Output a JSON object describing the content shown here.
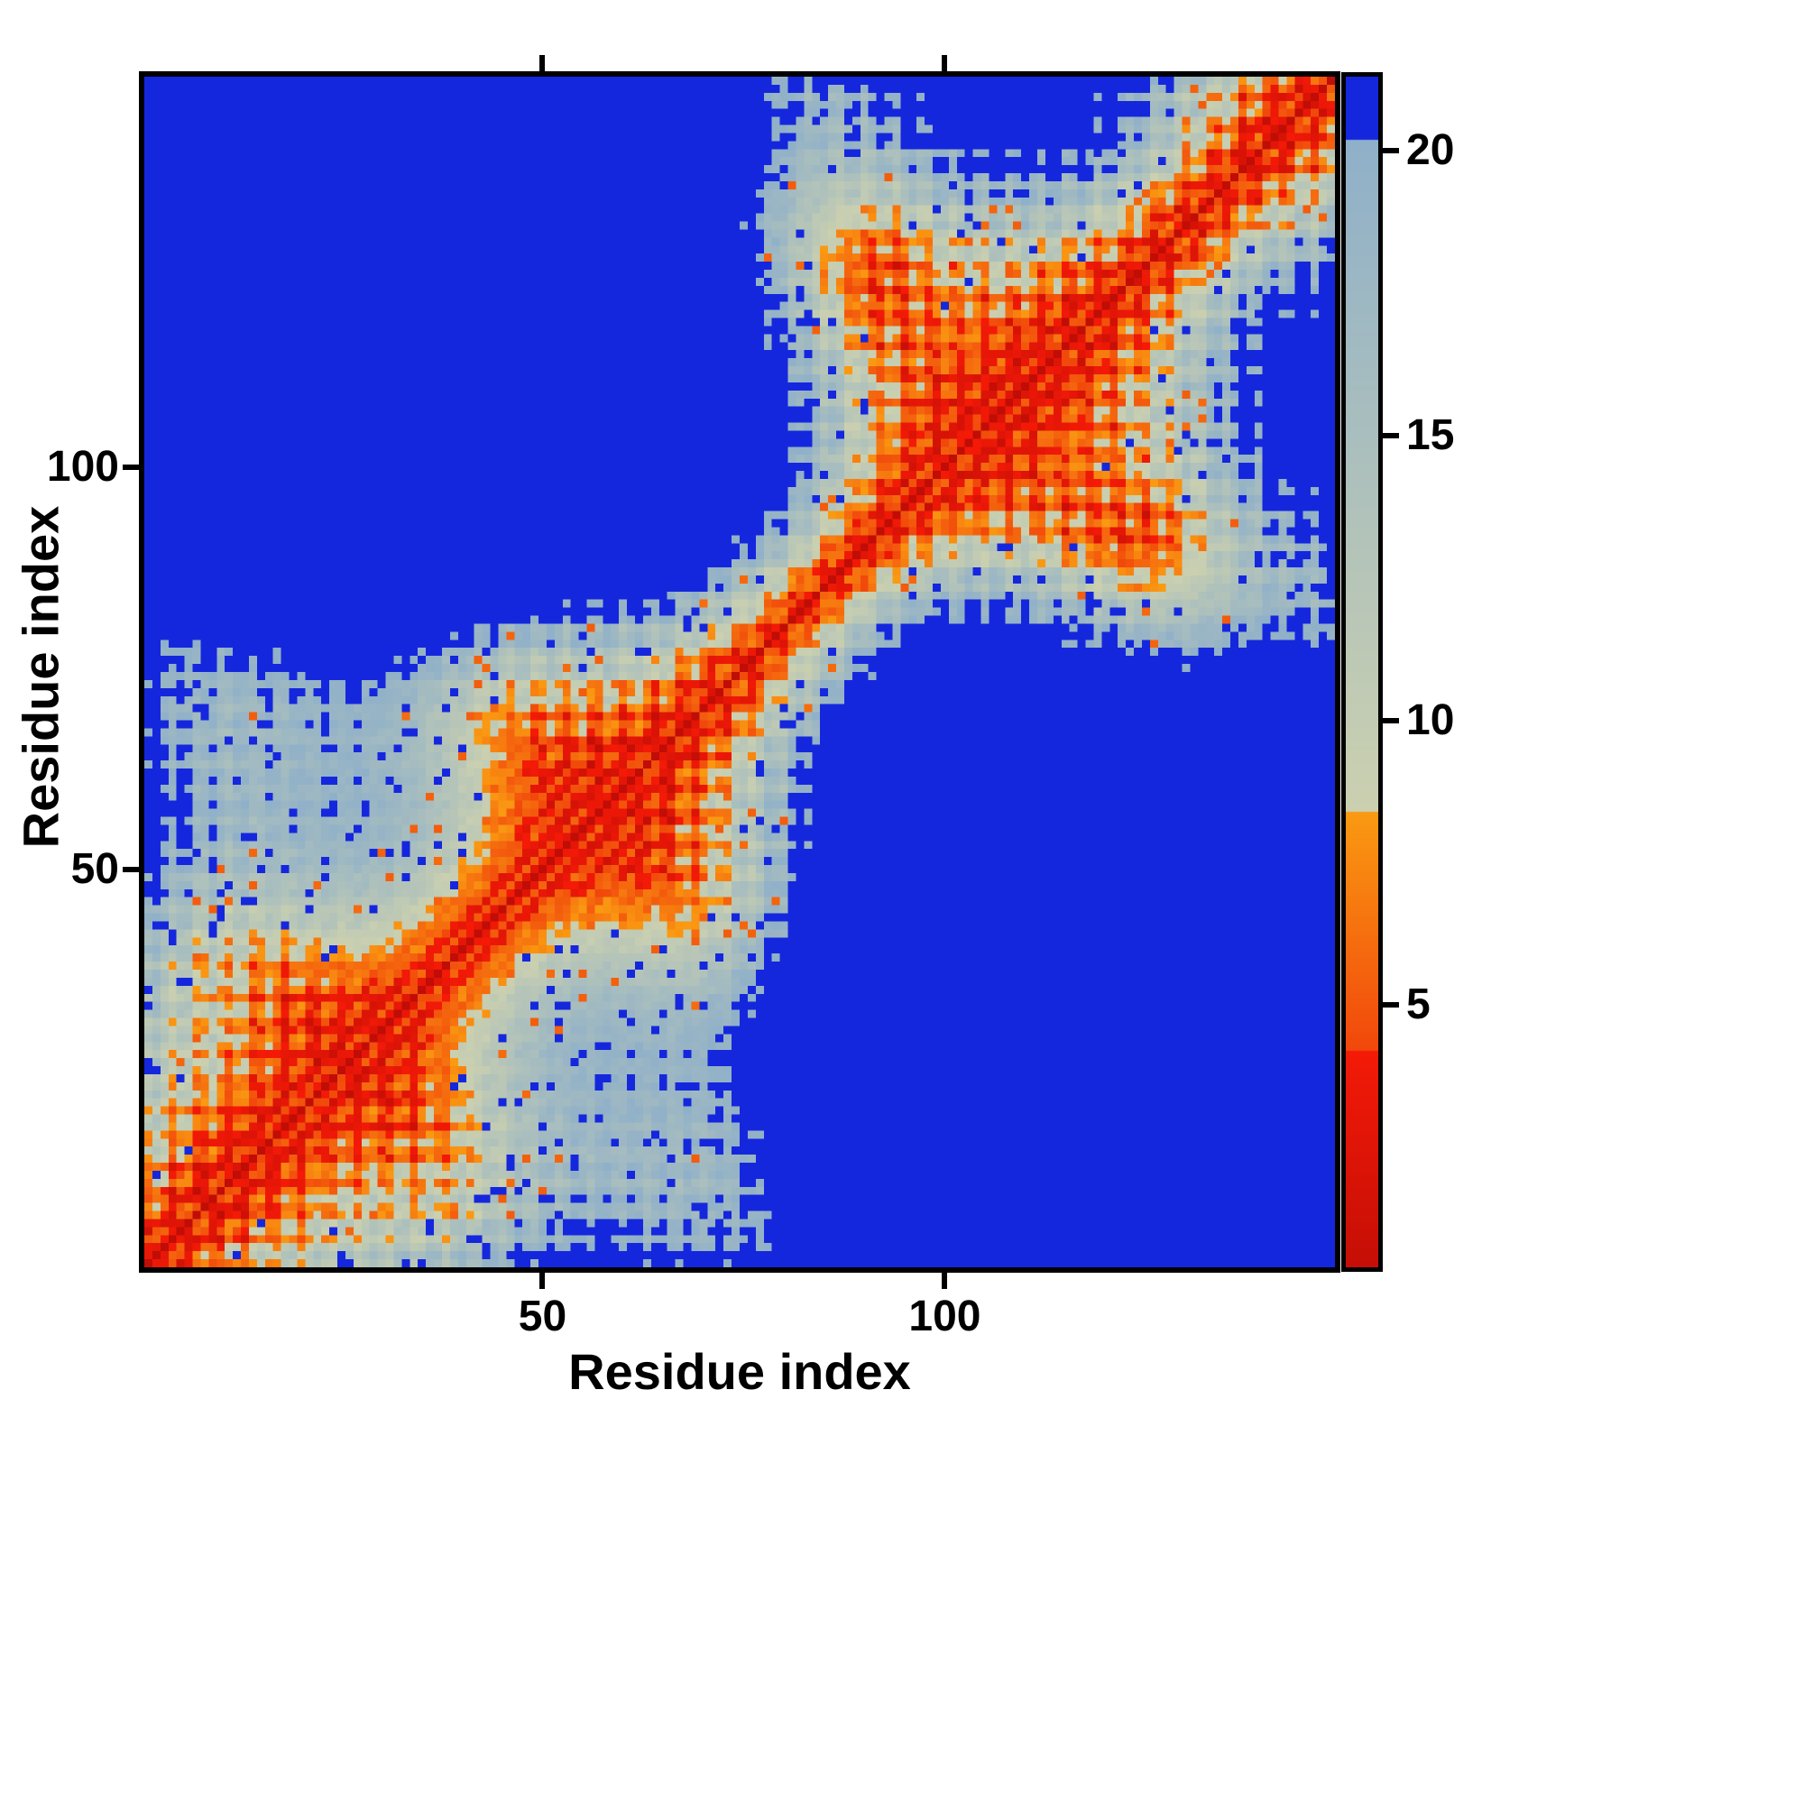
{
  "figure": {
    "background": "#ffffff"
  },
  "chart_data": {
    "type": "heatmap",
    "title": "",
    "xlabel": "Residue index",
    "ylabel": "Residue index",
    "x_ticks": [
      50,
      100
    ],
    "y_ticks": [
      50,
      100
    ],
    "n_residues": 148,
    "axis_range": [
      1,
      148
    ],
    "grid": false,
    "legend": "none",
    "colorbar": {
      "position": "right",
      "ticks": [
        5,
        10,
        15,
        20
      ],
      "vmin": 0.4,
      "vmax": 21.3
    },
    "colormap_bands": [
      {
        "max": 4.2,
        "from": "#c00d06",
        "to": "#f41a07"
      },
      {
        "max": 8.4,
        "from": "#f1470b",
        "to": "#fa9a12"
      },
      {
        "max": 20.2,
        "from": "#cbd0af",
        "to": "#8fb0c9"
      },
      {
        "max": 999,
        "from": "#1527dd",
        "to": "#1527dd"
      }
    ],
    "palette": {
      "red": "#ee1507",
      "orange": "#f8850e",
      "pale_contact": "#c3cbb6",
      "far_blue": "#1527dd"
    },
    "generator": {
      "description": "synthetic residue-residue distance matrix reconstruction",
      "guide": {
        "x": [
          [
            13.0,
            0.04,
            0.2
          ],
          [
            3.8,
            0.11,
            1.0
          ]
        ],
        "y": [
          [
            13.0,
            0.053,
            2.3
          ],
          [
            3.8,
            0.09,
            4.2
          ]
        ],
        "z": [
          [
            13.0,
            0.029,
            4.4
          ],
          [
            3.8,
            0.14,
            0.7
          ]
        ]
      },
      "helix": {
        "radius": 2.3,
        "omega": 1.745
      },
      "drift": 0.1,
      "noise": {
        "amp": 2.2,
        "orange_thresh": 0.962,
        "blue_thresh": 0.06
      }
    }
  }
}
